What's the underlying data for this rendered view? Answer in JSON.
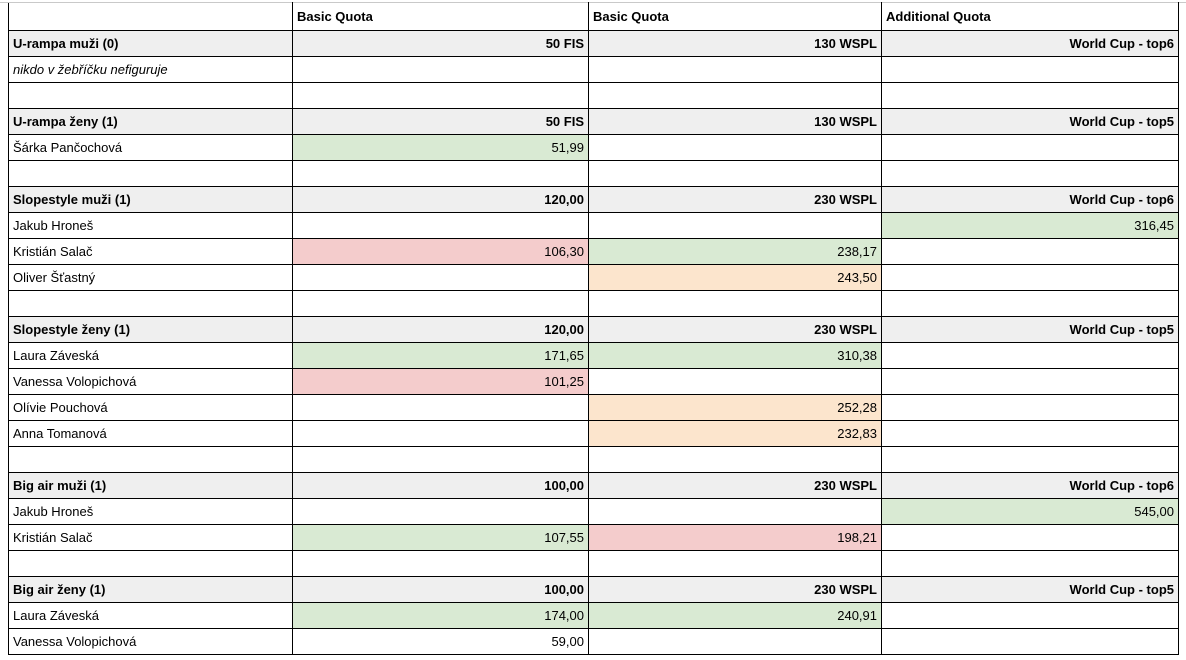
{
  "colors": {
    "positive_fill": "#d9ead3",
    "negative_fill": "#f4cccc",
    "warning_fill": "#fce5cd",
    "section_fill": "#efefef",
    "cell_border": "#000000",
    "gridline": "#c9c9c9"
  },
  "table": {
    "column_headers": [
      "",
      "Basic Quota",
      "Basic Quota",
      "Additional Quota"
    ],
    "rows": [
      {
        "kind": "header",
        "cells": [
          {
            "text": ""
          },
          {
            "text": "Basic Quota"
          },
          {
            "text": "Basic Quota"
          },
          {
            "text": "Additional Quota"
          }
        ]
      },
      {
        "kind": "section",
        "cells": [
          {
            "text": "U-rampa muži (0)"
          },
          {
            "text": "50 FIS"
          },
          {
            "text": "130 WSPL"
          },
          {
            "text": "World Cup - top6"
          }
        ]
      },
      {
        "kind": "note",
        "cells": [
          {
            "text": "nikdo v žebříčku nefiguruje"
          },
          {
            "text": ""
          },
          {
            "text": ""
          },
          {
            "text": ""
          }
        ]
      },
      {
        "kind": "blank",
        "cells": [
          {
            "text": ""
          },
          {
            "text": ""
          },
          {
            "text": ""
          },
          {
            "text": ""
          }
        ]
      },
      {
        "kind": "section",
        "cells": [
          {
            "text": "U-rampa ženy (1)"
          },
          {
            "text": "50 FIS"
          },
          {
            "text": "130 WSPL"
          },
          {
            "text": "World Cup - top5"
          }
        ]
      },
      {
        "kind": "data",
        "cells": [
          {
            "text": "Šárka Pančochová"
          },
          {
            "text": "51,99",
            "fill": "green"
          },
          {
            "text": ""
          },
          {
            "text": ""
          }
        ]
      },
      {
        "kind": "blank",
        "cells": [
          {
            "text": ""
          },
          {
            "text": ""
          },
          {
            "text": ""
          },
          {
            "text": ""
          }
        ]
      },
      {
        "kind": "section",
        "cells": [
          {
            "text": "Slopestyle muži (1)"
          },
          {
            "text": "120,00"
          },
          {
            "text": "230 WSPL"
          },
          {
            "text": "World Cup - top6"
          }
        ]
      },
      {
        "kind": "data",
        "cells": [
          {
            "text": "Jakub Hroneš"
          },
          {
            "text": ""
          },
          {
            "text": ""
          },
          {
            "text": "316,45",
            "fill": "green"
          }
        ]
      },
      {
        "kind": "data",
        "cells": [
          {
            "text": "Kristián Salač"
          },
          {
            "text": "106,30",
            "fill": "red"
          },
          {
            "text": "238,17",
            "fill": "green"
          },
          {
            "text": ""
          }
        ]
      },
      {
        "kind": "data",
        "cells": [
          {
            "text": "Oliver Šťastný"
          },
          {
            "text": ""
          },
          {
            "text": "243,50",
            "fill": "orange"
          },
          {
            "text": ""
          }
        ]
      },
      {
        "kind": "blank",
        "cells": [
          {
            "text": ""
          },
          {
            "text": ""
          },
          {
            "text": ""
          },
          {
            "text": ""
          }
        ]
      },
      {
        "kind": "section",
        "cells": [
          {
            "text": "Slopestyle ženy (1)"
          },
          {
            "text": "120,00"
          },
          {
            "text": "230 WSPL"
          },
          {
            "text": "World Cup - top5"
          }
        ]
      },
      {
        "kind": "data",
        "cells": [
          {
            "text": "Laura Záveská"
          },
          {
            "text": "171,65",
            "fill": "green"
          },
          {
            "text": "310,38",
            "fill": "green"
          },
          {
            "text": ""
          }
        ]
      },
      {
        "kind": "data",
        "cells": [
          {
            "text": "Vanessa Volopichová"
          },
          {
            "text": "101,25",
            "fill": "red"
          },
          {
            "text": ""
          },
          {
            "text": ""
          }
        ]
      },
      {
        "kind": "data",
        "cells": [
          {
            "text": "Olívie Pouchová"
          },
          {
            "text": ""
          },
          {
            "text": "252,28",
            "fill": "orange"
          },
          {
            "text": ""
          }
        ]
      },
      {
        "kind": "data",
        "cells": [
          {
            "text": "Anna Tomanová"
          },
          {
            "text": ""
          },
          {
            "text": "232,83",
            "fill": "orange"
          },
          {
            "text": ""
          }
        ]
      },
      {
        "kind": "blank",
        "cells": [
          {
            "text": ""
          },
          {
            "text": ""
          },
          {
            "text": ""
          },
          {
            "text": ""
          }
        ]
      },
      {
        "kind": "section",
        "cells": [
          {
            "text": "Big air muži (1)"
          },
          {
            "text": "100,00"
          },
          {
            "text": "230 WSPL"
          },
          {
            "text": "World Cup - top6"
          }
        ]
      },
      {
        "kind": "data",
        "cells": [
          {
            "text": "Jakub Hroneš"
          },
          {
            "text": ""
          },
          {
            "text": ""
          },
          {
            "text": "545,00",
            "fill": "green"
          }
        ]
      },
      {
        "kind": "data",
        "cells": [
          {
            "text": "Kristián Salač"
          },
          {
            "text": "107,55",
            "fill": "green"
          },
          {
            "text": "198,21",
            "fill": "red"
          },
          {
            "text": ""
          }
        ]
      },
      {
        "kind": "blank",
        "cells": [
          {
            "text": ""
          },
          {
            "text": ""
          },
          {
            "text": ""
          },
          {
            "text": ""
          }
        ]
      },
      {
        "kind": "section",
        "cells": [
          {
            "text": "Big air ženy (1)"
          },
          {
            "text": "100,00"
          },
          {
            "text": "230 WSPL"
          },
          {
            "text": "World Cup - top5"
          }
        ]
      },
      {
        "kind": "data",
        "cells": [
          {
            "text": "Laura Záveská"
          },
          {
            "text": "174,00",
            "fill": "green"
          },
          {
            "text": "240,91",
            "fill": "green"
          },
          {
            "text": ""
          }
        ]
      },
      {
        "kind": "data",
        "cells": [
          {
            "text": "Vanessa Volopichová"
          },
          {
            "text": "59,00"
          },
          {
            "text": ""
          },
          {
            "text": ""
          }
        ]
      }
    ]
  }
}
